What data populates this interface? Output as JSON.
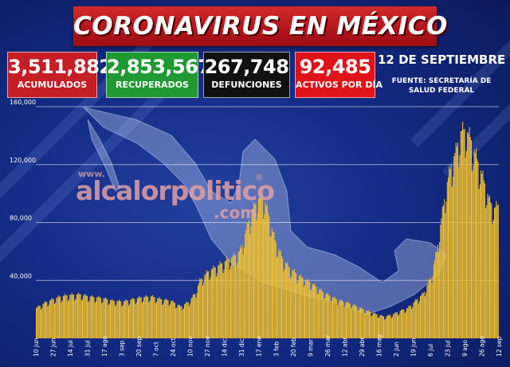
{
  "header": {
    "title": "CORONAVIRUS EN MÉXICO"
  },
  "stats": {
    "acumulados": {
      "value": "3,511,882",
      "label": "ACUMULADOS"
    },
    "recuperados": {
      "value": "2,853,567",
      "label": "RECUPERADOS"
    },
    "defunciones": {
      "value": "267,748",
      "label": "DEFUNCIONES"
    },
    "activos": {
      "value": "92,485",
      "label": "ACTIVOS POR DÍA"
    }
  },
  "date": "12 DE SEPTIEMBRE",
  "source": "FUENTE: SECRETARÍA DE SALUD FEDERAL",
  "watermark": {
    "www": "www.",
    "main": "alcalorpolitico",
    "com": ".com",
    "reg": "®"
  },
  "colors": {
    "bar": "#f2c230",
    "bar_edge": "#b8860b",
    "background": "#142c86",
    "banner": "#c0171d",
    "grid": "#ffffff"
  },
  "chart_data": {
    "type": "bar",
    "ylim": [
      0,
      160000
    ],
    "yticks": [
      "40,000",
      "80,000",
      "120,000",
      "160,000"
    ],
    "ytick_values": [
      40000,
      80000,
      120000,
      160000
    ],
    "xticks": [
      "10 jun",
      "27 jun",
      "14 jul",
      "31 jul",
      "17 ago",
      "3 sep",
      "20 sep",
      "7 oct",
      "24 oct",
      "10 nov",
      "27 nov",
      "14 dic",
      "31 dic",
      "17 ene",
      "3 feb",
      "20 feb",
      "9 mar",
      "26 mar",
      "12 abr",
      "29 abr",
      "16 may",
      "2 jun",
      "19 jun",
      "6 jul",
      "23 jul",
      "9 ago",
      "26 ago",
      "12 sep"
    ],
    "grid": true,
    "anchors": [
      [
        0,
        21000
      ],
      [
        5,
        23000
      ],
      [
        10,
        25000
      ],
      [
        17,
        27000
      ],
      [
        25,
        29000
      ],
      [
        34,
        30000
      ],
      [
        45,
        30500
      ],
      [
        55,
        29000
      ],
      [
        68,
        28000
      ],
      [
        80,
        26000
      ],
      [
        90,
        25500
      ],
      [
        100,
        27000
      ],
      [
        110,
        28500
      ],
      [
        120,
        29000
      ],
      [
        130,
        27000
      ],
      [
        140,
        26000
      ],
      [
        150,
        22000
      ],
      [
        158,
        25000
      ],
      [
        165,
        31000
      ],
      [
        170,
        40000
      ],
      [
        178,
        46000
      ],
      [
        188,
        50000
      ],
      [
        198,
        54000
      ],
      [
        208,
        58000
      ],
      [
        213,
        62000
      ],
      [
        218,
        75000
      ],
      [
        224,
        88000
      ],
      [
        230,
        96000
      ],
      [
        234,
        98000
      ],
      [
        238,
        94000
      ],
      [
        242,
        84000
      ],
      [
        248,
        68000
      ],
      [
        256,
        55000
      ],
      [
        264,
        48000
      ],
      [
        274,
        43000
      ],
      [
        286,
        38000
      ],
      [
        298,
        32000
      ],
      [
        312,
        27000
      ],
      [
        326,
        24000
      ],
      [
        340,
        20000
      ],
      [
        352,
        17000
      ],
      [
        362,
        15000
      ],
      [
        370,
        16500
      ],
      [
        378,
        19000
      ],
      [
        386,
        21000
      ],
      [
        394,
        26000
      ],
      [
        402,
        31000
      ],
      [
        410,
        42000
      ],
      [
        416,
        60000
      ],
      [
        421,
        83000
      ],
      [
        426,
        105000
      ],
      [
        431,
        120000
      ],
      [
        436,
        130000
      ],
      [
        441,
        143000
      ],
      [
        446,
        145000
      ],
      [
        451,
        139000
      ],
      [
        456,
        128000
      ],
      [
        461,
        118000
      ],
      [
        466,
        107000
      ],
      [
        471,
        95000
      ],
      [
        476,
        90000
      ],
      [
        480,
        92485
      ]
    ],
    "n_days": 481
  }
}
